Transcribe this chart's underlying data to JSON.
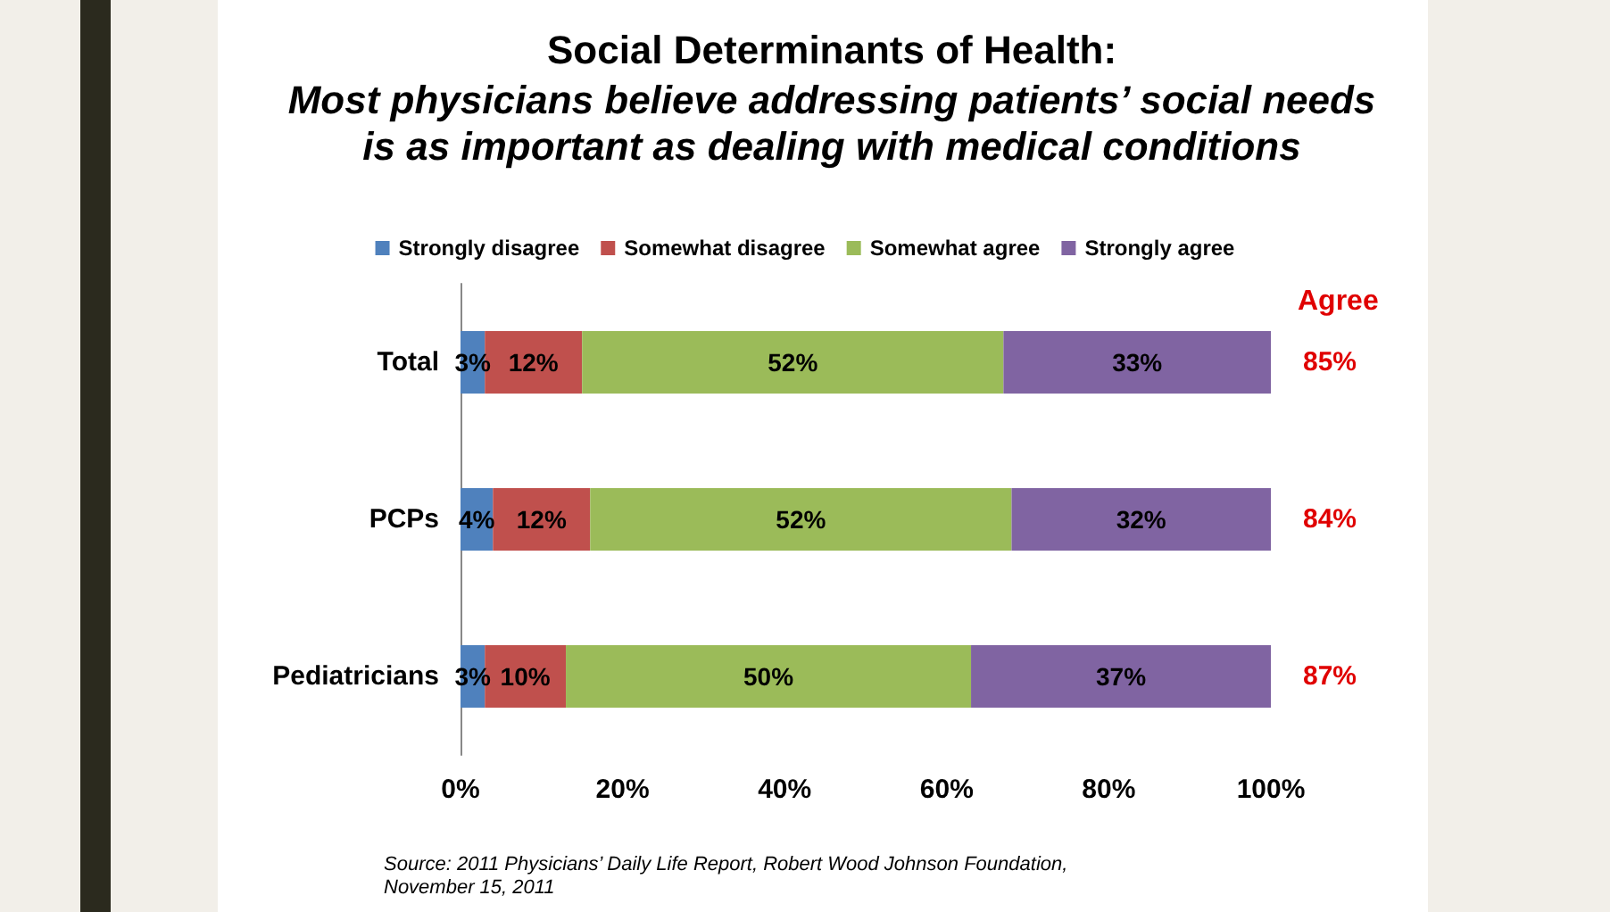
{
  "chart_data": {
    "type": "bar",
    "orientation": "horizontal",
    "stacked": true,
    "title": "Social Determinants of Health:",
    "subtitle": "Most physicians believe addressing patients’ social needs\nis as important as dealing with medical conditions",
    "categories": [
      "Total",
      "PCPs",
      "Pediatricians"
    ],
    "series": [
      {
        "name": "Strongly disagree",
        "color": "#4f81bd",
        "values": [
          3,
          4,
          3
        ],
        "value_labels": [
          "3%",
          "4%",
          "3%"
        ]
      },
      {
        "name": "Somewhat disagree",
        "color": "#c0504d",
        "values": [
          12,
          12,
          10
        ],
        "value_labels": [
          "12%",
          "12%",
          "10%"
        ]
      },
      {
        "name": "Somewhat agree",
        "color": "#9bbb59",
        "values": [
          52,
          52,
          50
        ],
        "value_labels": [
          "52%",
          "52%",
          "50%"
        ]
      },
      {
        "name": "Strongly agree",
        "color": "#8064a2",
        "values": [
          33,
          32,
          37
        ],
        "value_labels": [
          "33%",
          "32%",
          "37%"
        ]
      }
    ],
    "xlim": [
      0,
      100
    ],
    "xticks": [
      {
        "value": 0,
        "label": "0%"
      },
      {
        "value": 20,
        "label": "20%"
      },
      {
        "value": 40,
        "label": "40%"
      },
      {
        "value": 60,
        "label": "60%"
      },
      {
        "value": 80,
        "label": "80%"
      },
      {
        "value": 100,
        "label": "100%"
      }
    ],
    "grid": false,
    "legend": "top",
    "annotations": [
      "Agree",
      "85%",
      "84%",
      "87%",
      "Source: 2011 Physicians’ Daily Life Report, Robert Wood Johnson Foundation,\nNovember 15, 2011"
    ]
  }
}
